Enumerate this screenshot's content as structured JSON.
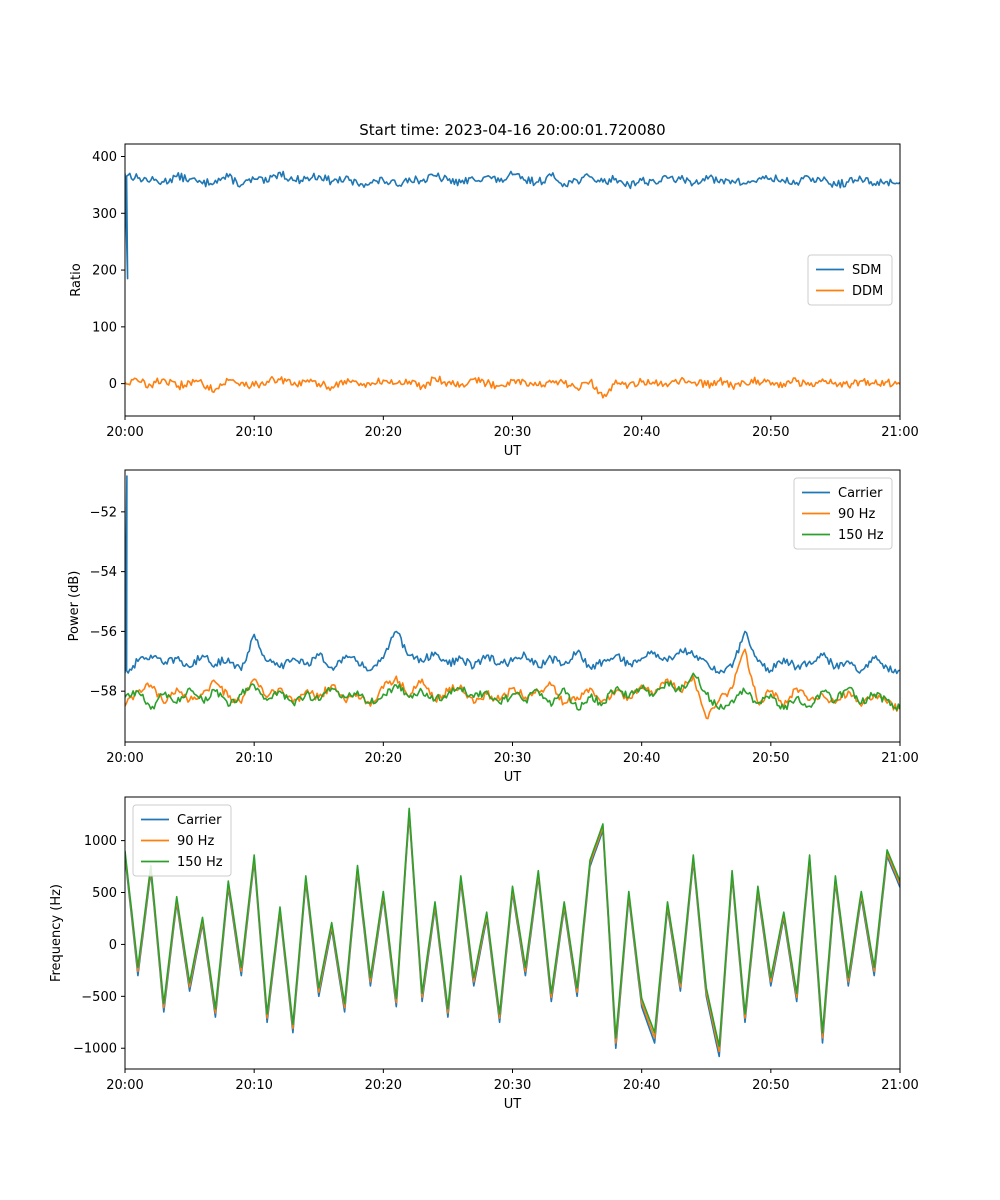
{
  "chart_data": [
    {
      "type": "line",
      "title": "Start time: 2023-04-16 20:00:01.720080",
      "xlabel": "UT",
      "ylabel": "Ratio",
      "xlim": [
        "20:00",
        "21:00"
      ],
      "ylim": [
        -57,
        422
      ],
      "xticks": [
        "20:00",
        "20:10",
        "20:20",
        "20:30",
        "20:40",
        "20:50",
        "21:00"
      ],
      "yticks": [
        0,
        100,
        200,
        300,
        400
      ],
      "legend_position": "center-right",
      "grid": false,
      "series": [
        {
          "name": "SDM",
          "color": "#1f77b4",
          "x_minutes": [
            0,
            1,
            2,
            3,
            4,
            5,
            6,
            7,
            8,
            9,
            10,
            11,
            12,
            13,
            14,
            15,
            16,
            17,
            18,
            19,
            20,
            21,
            22,
            23,
            24,
            25,
            26,
            27,
            28,
            29,
            30,
            31,
            32,
            33,
            34,
            35,
            36,
            37,
            38,
            39,
            40,
            41,
            42,
            43,
            44,
            45,
            46,
            47,
            48,
            49,
            50,
            51,
            52,
            53,
            54,
            55,
            56,
            57,
            58,
            59,
            60
          ],
          "values": [
            370,
            362,
            358,
            355,
            365,
            360,
            352,
            358,
            364,
            350,
            360,
            355,
            372,
            358,
            361,
            366,
            356,
            360,
            352,
            354,
            358,
            350,
            362,
            357,
            366,
            358,
            354,
            360,
            365,
            356,
            368,
            358,
            355,
            366,
            352,
            358,
            364,
            355,
            361,
            350,
            358,
            355,
            362,
            360,
            352,
            366,
            354,
            358,
            352,
            360,
            362,
            357,
            354,
            362,
            358,
            350,
            355,
            360,
            352,
            356,
            354
          ],
          "spike": {
            "x_minutes": 0.2,
            "value": 185
          }
        },
        {
          "name": "DDM",
          "color": "#ff7f0e",
          "x_minutes": [
            0,
            1,
            2,
            3,
            4,
            5,
            6,
            7,
            8,
            9,
            10,
            11,
            12,
            13,
            14,
            15,
            16,
            17,
            18,
            19,
            20,
            21,
            22,
            23,
            24,
            25,
            26,
            27,
            28,
            29,
            30,
            31,
            32,
            33,
            34,
            35,
            36,
            37,
            38,
            39,
            40,
            41,
            42,
            43,
            44,
            45,
            46,
            47,
            48,
            49,
            50,
            51,
            52,
            53,
            54,
            55,
            56,
            57,
            58,
            59,
            60
          ],
          "values": [
            2,
            5,
            -3,
            8,
            -6,
            3,
            0,
            -10,
            6,
            2,
            -4,
            4,
            7,
            -2,
            3,
            0,
            -6,
            5,
            1,
            -3,
            6,
            0,
            4,
            -5,
            10,
            2,
            -2,
            8,
            0,
            -4,
            6,
            3,
            -3,
            2,
            0,
            -8,
            4,
            -25,
            6,
            -2,
            3,
            0,
            -5,
            6,
            2,
            -3,
            5,
            -4,
            1,
            6,
            -2,
            0,
            4,
            -3,
            8,
            2,
            -4,
            5,
            0,
            3,
            -1
          ]
        }
      ]
    },
    {
      "type": "line",
      "title": "",
      "xlabel": "UT",
      "ylabel": "Power (dB)",
      "xlim": [
        "20:00",
        "21:00"
      ],
      "ylim": [
        -59.7,
        -50.6
      ],
      "xticks": [
        "20:00",
        "20:10",
        "20:20",
        "20:30",
        "20:40",
        "20:50",
        "21:00"
      ],
      "yticks": [
        -58,
        -56,
        -54,
        -52
      ],
      "legend_position": "upper-right",
      "grid": false,
      "series": [
        {
          "name": "Carrier",
          "color": "#1f77b4",
          "x_minutes": [
            0,
            1,
            2,
            3,
            4,
            5,
            6,
            7,
            8,
            9,
            10,
            11,
            12,
            13,
            14,
            15,
            16,
            17,
            18,
            19,
            20,
            21,
            22,
            23,
            24,
            25,
            26,
            27,
            28,
            29,
            30,
            31,
            32,
            33,
            34,
            35,
            36,
            37,
            38,
            39,
            40,
            41,
            42,
            43,
            44,
            45,
            46,
            47,
            48,
            49,
            50,
            51,
            52,
            53,
            54,
            55,
            56,
            57,
            58,
            59,
            60
          ],
          "values": [
            -57.4,
            -57.0,
            -56.8,
            -57.1,
            -56.9,
            -57.2,
            -56.8,
            -57.1,
            -56.9,
            -57.3,
            -56.1,
            -57.0,
            -57.2,
            -56.9,
            -57.1,
            -56.8,
            -57.2,
            -56.9,
            -57.0,
            -57.3,
            -56.9,
            -56.0,
            -56.8,
            -57.0,
            -56.7,
            -57.1,
            -56.9,
            -57.2,
            -56.8,
            -57.1,
            -57.0,
            -56.8,
            -57.2,
            -56.9,
            -57.1,
            -56.7,
            -57.2,
            -57.0,
            -56.8,
            -57.1,
            -56.9,
            -56.7,
            -57.0,
            -56.6,
            -56.8,
            -57.0,
            -57.4,
            -57.2,
            -56.0,
            -57.0,
            -57.3,
            -56.9,
            -57.2,
            -57.0,
            -56.8,
            -57.2,
            -57.0,
            -57.3,
            -56.9,
            -57.2,
            -57.3
          ],
          "spike": {
            "x_minutes": 0.15,
            "value": -50.8
          }
        },
        {
          "name": "90 Hz",
          "color": "#ff7f0e",
          "x_minutes": [
            0,
            1,
            2,
            3,
            4,
            5,
            6,
            7,
            8,
            9,
            10,
            11,
            12,
            13,
            14,
            15,
            16,
            17,
            18,
            19,
            20,
            21,
            22,
            23,
            24,
            25,
            26,
            27,
            28,
            29,
            30,
            31,
            32,
            33,
            34,
            35,
            36,
            37,
            38,
            39,
            40,
            41,
            42,
            43,
            44,
            45,
            46,
            47,
            48,
            49,
            50,
            51,
            52,
            53,
            54,
            55,
            56,
            57,
            58,
            59,
            60
          ],
          "values": [
            -58.5,
            -58.0,
            -57.8,
            -58.4,
            -57.9,
            -58.3,
            -58.1,
            -57.7,
            -58.2,
            -58.4,
            -57.6,
            -58.2,
            -57.9,
            -58.4,
            -58.0,
            -58.2,
            -57.8,
            -58.3,
            -58.1,
            -58.5,
            -57.9,
            -57.5,
            -58.2,
            -57.6,
            -58.3,
            -58.0,
            -57.8,
            -58.4,
            -58.1,
            -58.3,
            -57.9,
            -58.2,
            -58.0,
            -57.8,
            -58.4,
            -58.2,
            -57.9,
            -58.3,
            -58.0,
            -58.2,
            -57.8,
            -58.1,
            -57.6,
            -58.0,
            -57.5,
            -58.9,
            -58.3,
            -57.9,
            -56.6,
            -58.4,
            -58.0,
            -58.5,
            -57.9,
            -58.3,
            -58.1,
            -58.4,
            -58.0,
            -58.5,
            -58.1,
            -58.4,
            -58.6
          ]
        },
        {
          "name": "150 Hz",
          "color": "#2ca02c",
          "x_minutes": [
            0,
            1,
            2,
            3,
            4,
            5,
            6,
            7,
            8,
            9,
            10,
            11,
            12,
            13,
            14,
            15,
            16,
            17,
            18,
            19,
            20,
            21,
            22,
            23,
            24,
            25,
            26,
            27,
            28,
            29,
            30,
            31,
            32,
            33,
            34,
            35,
            36,
            37,
            38,
            39,
            40,
            41,
            42,
            43,
            44,
            45,
            46,
            47,
            48,
            49,
            50,
            51,
            52,
            53,
            54,
            55,
            56,
            57,
            58,
            59,
            60
          ],
          "values": [
            -58.2,
            -58.0,
            -58.6,
            -58.1,
            -58.4,
            -57.9,
            -58.3,
            -58.0,
            -58.5,
            -58.1,
            -57.8,
            -58.3,
            -58.0,
            -58.4,
            -58.1,
            -58.3,
            -57.9,
            -58.2,
            -58.0,
            -58.4,
            -58.1,
            -57.8,
            -58.2,
            -58.0,
            -58.3,
            -58.1,
            -57.9,
            -58.2,
            -58.0,
            -58.4,
            -58.1,
            -58.3,
            -58.0,
            -58.5,
            -57.9,
            -58.6,
            -58.2,
            -58.4,
            -57.9,
            -58.2,
            -57.9,
            -58.1,
            -57.7,
            -58.0,
            -57.4,
            -58.1,
            -58.6,
            -58.3,
            -58.0,
            -58.4,
            -58.1,
            -58.6,
            -58.2,
            -58.5,
            -58.0,
            -58.3,
            -57.9,
            -58.4,
            -58.1,
            -58.3,
            -58.6
          ]
        }
      ]
    },
    {
      "type": "line",
      "title": "",
      "xlabel": "UT",
      "ylabel": "Frequency (Hz)",
      "xlim": [
        "20:00",
        "21:00"
      ],
      "ylim": [
        -1200,
        1420
      ],
      "xticks": [
        "20:00",
        "20:10",
        "20:20",
        "20:30",
        "20:40",
        "20:50",
        "21:00"
      ],
      "yticks": [
        -1000,
        -500,
        0,
        500,
        1000
      ],
      "legend_position": "upper-left",
      "grid": false,
      "series": [
        {
          "name": "Carrier",
          "color": "#1f77b4",
          "x_minutes": [
            0,
            1,
            2,
            3,
            4,
            5,
            6,
            7,
            8,
            9,
            10,
            11,
            12,
            13,
            14,
            15,
            16,
            17,
            18,
            19,
            20,
            21,
            22,
            23,
            24,
            25,
            26,
            27,
            28,
            29,
            30,
            31,
            32,
            33,
            34,
            35,
            36,
            37,
            38,
            39,
            40,
            41,
            42,
            43,
            44,
            45,
            46,
            47,
            48,
            49,
            50,
            51,
            52,
            53,
            54,
            55,
            56,
            57,
            58,
            59,
            60
          ],
          "values": [
            850,
            -300,
            700,
            -650,
            400,
            -450,
            200,
            -700,
            550,
            -300,
            800,
            -750,
            300,
            -850,
            600,
            -500,
            150,
            -650,
            700,
            -400,
            450,
            -600,
            1250,
            -550,
            350,
            -700,
            600,
            -400,
            250,
            -750,
            500,
            -300,
            650,
            -550,
            350,
            -500,
            750,
            1100,
            -1000,
            450,
            -600,
            -950,
            350,
            -450,
            800,
            -500,
            -1080,
            650,
            -750,
            500,
            -400,
            250,
            -550,
            800,
            -950,
            600,
            -400,
            450,
            -300,
            850,
            550
          ]
        },
        {
          "name": "90 Hz",
          "color": "#ff7f0e",
          "x_minutes": [
            0,
            1,
            2,
            3,
            4,
            5,
            6,
            7,
            8,
            9,
            10,
            11,
            12,
            13,
            14,
            15,
            16,
            17,
            18,
            19,
            20,
            21,
            22,
            23,
            24,
            25,
            26,
            27,
            28,
            29,
            30,
            31,
            32,
            33,
            34,
            35,
            36,
            37,
            38,
            39,
            40,
            41,
            42,
            43,
            44,
            45,
            46,
            47,
            48,
            49,
            50,
            51,
            52,
            53,
            54,
            55,
            56,
            57,
            58,
            59,
            60
          ],
          "values": [
            880,
            -260,
            730,
            -610,
            430,
            -410,
            230,
            -660,
            580,
            -260,
            830,
            -710,
            330,
            -810,
            630,
            -460,
            180,
            -610,
            730,
            -360,
            480,
            -560,
            1280,
            -510,
            380,
            -660,
            630,
            -360,
            280,
            -710,
            530,
            -260,
            680,
            -510,
            380,
            -460,
            780,
            1130,
            -950,
            480,
            -560,
            -900,
            380,
            -410,
            830,
            -460,
            -1030,
            680,
            -710,
            530,
            -360,
            280,
            -510,
            830,
            -900,
            630,
            -360,
            480,
            -260,
            880,
            580
          ]
        },
        {
          "name": "150 Hz",
          "color": "#2ca02c",
          "x_minutes": [
            0,
            1,
            2,
            3,
            4,
            5,
            6,
            7,
            8,
            9,
            10,
            11,
            12,
            13,
            14,
            15,
            16,
            17,
            18,
            19,
            20,
            21,
            22,
            23,
            24,
            25,
            26,
            27,
            28,
            29,
            30,
            31,
            32,
            33,
            34,
            35,
            36,
            37,
            38,
            39,
            40,
            41,
            42,
            43,
            44,
            45,
            46,
            47,
            48,
            49,
            50,
            51,
            52,
            53,
            54,
            55,
            56,
            57,
            58,
            59,
            60
          ],
          "values": [
            900,
            -220,
            760,
            -570,
            460,
            -370,
            260,
            -620,
            610,
            -220,
            860,
            -670,
            360,
            -770,
            660,
            -420,
            210,
            -570,
            760,
            -320,
            510,
            -520,
            1310,
            -470,
            410,
            -620,
            660,
            -320,
            310,
            -670,
            560,
            -220,
            710,
            -470,
            410,
            -420,
            810,
            1160,
            -900,
            510,
            -520,
            -850,
            410,
            -370,
            860,
            -420,
            -980,
            710,
            -670,
            560,
            -320,
            310,
            -470,
            860,
            -850,
            660,
            -320,
            510,
            -220,
            910,
            610
          ]
        }
      ]
    }
  ]
}
